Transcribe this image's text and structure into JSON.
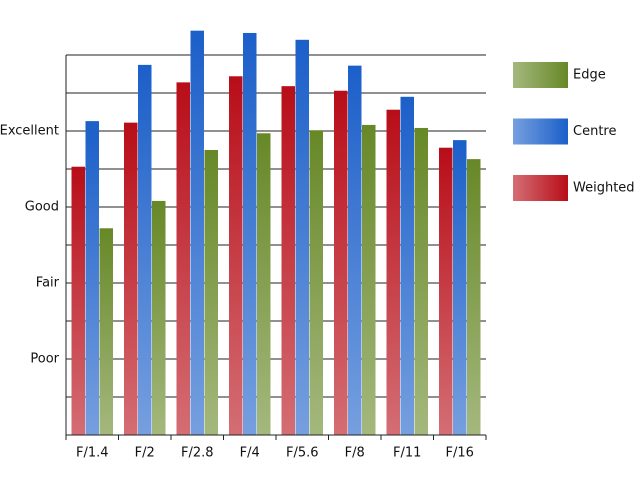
{
  "chart_data": {
    "type": "bar",
    "categories": [
      "F/1.4",
      "F/2",
      "F/2.8",
      "F/4",
      "F/5.6",
      "F/8",
      "F/11",
      "F/16"
    ],
    "series": [
      {
        "name": "Weighted",
        "color": "#b80d18",
        "values": [
          3.53,
          4.11,
          4.64,
          4.72,
          4.59,
          4.53,
          4.28,
          3.78
        ]
      },
      {
        "name": "Centre",
        "color": "#1b5fc9",
        "values": [
          4.13,
          4.87,
          5.32,
          5.29,
          5.2,
          4.86,
          4.45,
          3.88
        ]
      },
      {
        "name": "Edge",
        "color": "#678827",
        "values": [
          2.72,
          3.08,
          3.75,
          3.97,
          4.01,
          4.08,
          4.04,
          3.63
        ]
      }
    ],
    "ylim": [
      0,
      5
    ],
    "yticks": [
      {
        "value": 1,
        "label": "Poor"
      },
      {
        "value": 2,
        "label": "Fair"
      },
      {
        "value": 3,
        "label": "Good"
      },
      {
        "value": 4,
        "label": "Excellent"
      }
    ],
    "minor_yticks": [
      0.5,
      1.5,
      2.5,
      3.5,
      4.5,
      5
    ],
    "grid": true
  }
}
